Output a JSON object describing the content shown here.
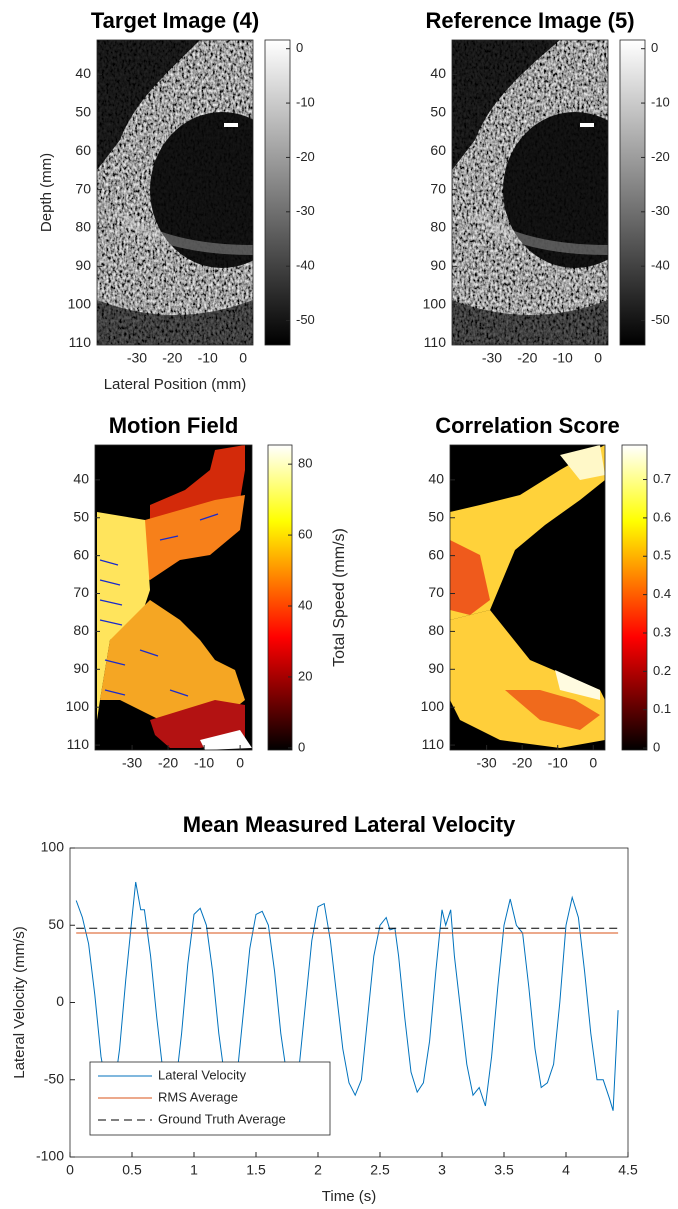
{
  "chart_data": [
    {
      "type": "image",
      "title": "Target Image (4)",
      "xlabel": "Lateral Position (mm)",
      "ylabel": "Depth (mm)",
      "xlim": [
        -41.3,
        2.8
      ],
      "ylim": [
        31,
        110.5
      ],
      "y_reversed": true,
      "xticks": [
        -30,
        -20,
        -10,
        0
      ],
      "yticks": [
        40,
        50,
        60,
        70,
        80,
        90,
        100,
        110
      ],
      "colorbar": {
        "colormap": "gray",
        "clim": [
          -54.5,
          1.6
        ],
        "ticks": [
          0,
          -10,
          -20,
          -30,
          -40,
          -50
        ]
      }
    },
    {
      "type": "image",
      "title": "Reference Image (5)",
      "xlim": [
        -41.3,
        2.8
      ],
      "ylim": [
        31,
        110.5
      ],
      "y_reversed": true,
      "xticks": [
        -30,
        -20,
        -10,
        0
      ],
      "yticks": [
        40,
        50,
        60,
        70,
        80,
        90,
        100,
        110
      ],
      "colorbar": {
        "colormap": "gray",
        "clim": [
          -54.5,
          1.6
        ],
        "ticks": [
          0,
          -10,
          -20,
          -30,
          -40,
          -50
        ]
      }
    },
    {
      "type": "image",
      "title": "Motion Field",
      "xlim": [
        -40.3,
        3.3
      ],
      "ylim": [
        30.8,
        111.3
      ],
      "y_reversed": true,
      "xticks": [
        -30,
        -20,
        -10,
        0
      ],
      "yticks": [
        40,
        50,
        60,
        70,
        80,
        90,
        100,
        110
      ],
      "colorbar": {
        "colormap": "hot",
        "clim": [
          -0.6,
          85.4
        ],
        "ticks": [
          0,
          20,
          40,
          60,
          80
        ],
        "label": "Total Speed (mm/s)"
      }
    },
    {
      "type": "image",
      "title": "Correlation Score",
      "xlim": [
        -40.3,
        3.3
      ],
      "ylim": [
        30.8,
        111.3
      ],
      "y_reversed": true,
      "xticks": [
        -30,
        -20,
        -10,
        0
      ],
      "yticks": [
        40,
        50,
        60,
        70,
        80,
        90,
        100,
        110
      ],
      "colorbar": {
        "colormap": "hot",
        "clim": [
          -0.005,
          0.79
        ],
        "ticks": [
          0,
          0.1,
          0.2,
          0.3,
          0.4,
          0.5,
          0.6,
          0.7
        ]
      }
    },
    {
      "type": "line",
      "title": "Mean Measured Lateral Velocity",
      "xlabel": "Time (s)",
      "ylabel": "Lateral Velocity (mm/s)",
      "xlim": [
        0,
        4.5
      ],
      "ylim": [
        -100,
        100
      ],
      "xticks": [
        0,
        0.5,
        1,
        1.5,
        2,
        2.5,
        3,
        3.5,
        4,
        4.5
      ],
      "yticks": [
        -100,
        -50,
        0,
        50,
        100
      ],
      "grid": false,
      "legend": "lower left",
      "series": [
        {
          "name": "Lateral Velocity",
          "color": "#0072bd",
          "linestyle": "-",
          "x": [
            0.05,
            0.1,
            0.15,
            0.2,
            0.25,
            0.3,
            0.35,
            0.4,
            0.45,
            0.5,
            0.53,
            0.57,
            0.6,
            0.65,
            0.7,
            0.75,
            0.8,
            0.85,
            0.9,
            0.95,
            1.0,
            1.05,
            1.1,
            1.15,
            1.2,
            1.25,
            1.3,
            1.35,
            1.4,
            1.45,
            1.5,
            1.55,
            1.6,
            1.65,
            1.7,
            1.75,
            1.8,
            1.85,
            1.9,
            1.95,
            2.0,
            2.05,
            2.1,
            2.15,
            2.2,
            2.25,
            2.3,
            2.35,
            2.4,
            2.45,
            2.5,
            2.55,
            2.58,
            2.62,
            2.65,
            2.7,
            2.75,
            2.8,
            2.85,
            2.9,
            2.95,
            3.0,
            3.03,
            3.07,
            3.1,
            3.15,
            3.2,
            3.25,
            3.3,
            3.35,
            3.4,
            3.45,
            3.5,
            3.55,
            3.6,
            3.65,
            3.7,
            3.75,
            3.8,
            3.85,
            3.9,
            3.95,
            4.0,
            4.05,
            4.1,
            4.15,
            4.2,
            4.25,
            4.3,
            4.35,
            4.38,
            4.42
          ],
          "values": [
            66,
            55,
            38,
            5,
            -35,
            -58,
            -60,
            -30,
            15,
            55,
            78,
            60,
            60,
            30,
            -10,
            -45,
            -62,
            -55,
            -20,
            25,
            57,
            61,
            50,
            20,
            -20,
            -50,
            -58,
            -45,
            -5,
            35,
            57,
            59,
            50,
            20,
            -20,
            -48,
            -50,
            -40,
            0,
            40,
            62,
            64,
            40,
            5,
            -30,
            -52,
            -60,
            -50,
            -10,
            30,
            50,
            55,
            47,
            48,
            30,
            -10,
            -45,
            -58,
            -52,
            -25,
            20,
            60,
            50,
            60,
            30,
            -5,
            -40,
            -60,
            -55,
            -67,
            -35,
            10,
            50,
            67,
            50,
            45,
            10,
            -30,
            -55,
            -52,
            -40,
            0,
            50,
            68,
            55,
            20,
            -20,
            -50,
            -50,
            -62,
            -70,
            -5
          ]
        },
        {
          "name": "RMS Average",
          "color": "#d95319",
          "linestyle": "-",
          "x": [
            0.05,
            4.42
          ],
          "values": [
            45,
            45
          ]
        },
        {
          "name": "Ground Truth Average",
          "color": "#000000",
          "linestyle": "--",
          "x": [
            0.05,
            4.42
          ],
          "values": [
            48,
            48
          ]
        }
      ]
    }
  ]
}
